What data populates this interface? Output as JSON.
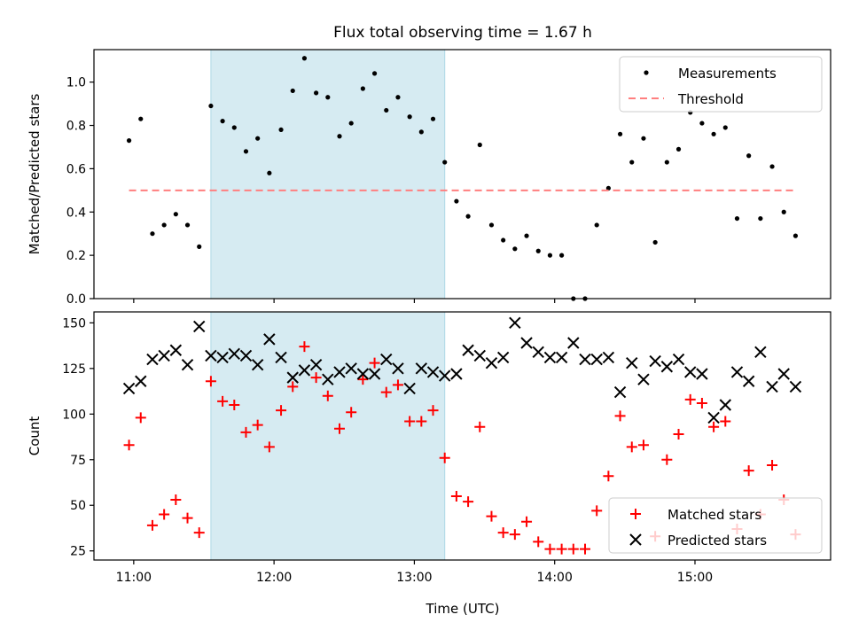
{
  "figure": {
    "title": "Flux total observing time = 1.67 h",
    "xlabel": "Time (UTC)"
  },
  "colors": {
    "measure": "#000000",
    "threshold": "#ff7f7f",
    "matched": "#ff0000",
    "predicted": "#000000",
    "shade": "#add8e6"
  },
  "chart_data": [
    {
      "type": "scatter",
      "ylabel": "Matched/Predicted stars",
      "xlim": [
        "10:43",
        "15:58"
      ],
      "ylim": [
        0,
        1.15
      ],
      "yticks": [
        0.0,
        0.2,
        0.4,
        0.6,
        0.8,
        1.0
      ],
      "xticks": [
        "11:00",
        "12:00",
        "13:00",
        "14:00",
        "15:00"
      ],
      "shaded_span": [
        "11:33",
        "13:13"
      ],
      "legend_position": "upper right",
      "series": [
        {
          "name": "Measurements",
          "marker": "dot",
          "x": [
            "10:58",
            "11:03",
            "11:08",
            "11:13",
            "11:18",
            "11:23",
            "11:28",
            "11:33",
            "11:38",
            "11:43",
            "11:48",
            "11:53",
            "11:58",
            "12:03",
            "12:08",
            "12:13",
            "12:18",
            "12:23",
            "12:28",
            "12:33",
            "12:38",
            "12:43",
            "12:48",
            "12:53",
            "12:58",
            "13:03",
            "13:08",
            "13:13",
            "13:18",
            "13:23",
            "13:28",
            "13:33",
            "13:38",
            "13:43",
            "13:48",
            "13:53",
            "13:58",
            "14:03",
            "14:08",
            "14:13",
            "14:18",
            "14:23",
            "14:28",
            "14:33",
            "14:38",
            "14:43",
            "14:48",
            "14:53",
            "14:58",
            "15:03",
            "15:08",
            "15:13",
            "15:18",
            "15:23",
            "15:28",
            "15:33",
            "15:38",
            "15:43"
          ],
          "y": [
            0.73,
            0.83,
            0.3,
            0.34,
            0.39,
            0.34,
            0.24,
            0.89,
            0.82,
            0.79,
            0.68,
            0.74,
            0.58,
            0.78,
            0.96,
            1.11,
            0.95,
            0.93,
            0.75,
            0.81,
            0.97,
            1.04,
            0.87,
            0.93,
            0.84,
            0.77,
            0.83,
            0.63,
            0.45,
            0.38,
            0.71,
            0.34,
            0.27,
            0.23,
            0.29,
            0.22,
            0.2,
            0.2,
            0.0,
            0.0,
            0.34,
            0.51,
            0.76,
            0.63,
            0.74,
            0.26,
            0.63,
            0.69,
            0.86,
            0.81,
            0.76,
            0.79,
            0.37,
            0.66,
            0.37,
            0.61,
            0.4,
            0.29
          ]
        },
        {
          "name": "Threshold",
          "style": "dashed",
          "x": [
            "10:58",
            "15:43"
          ],
          "y": [
            0.5,
            0.5
          ]
        }
      ]
    },
    {
      "type": "scatter",
      "ylabel": "Count",
      "xlim": [
        "10:43",
        "15:58"
      ],
      "ylim": [
        20,
        156
      ],
      "yticks": [
        25,
        50,
        75,
        100,
        125,
        150
      ],
      "xticks": [
        "11:00",
        "12:00",
        "13:00",
        "14:00",
        "15:00"
      ],
      "shaded_span": [
        "11:33",
        "13:13"
      ],
      "legend_position": "lower right",
      "series": [
        {
          "name": "Matched stars",
          "marker": "plus",
          "x": [
            "10:58",
            "11:03",
            "11:08",
            "11:13",
            "11:18",
            "11:23",
            "11:28",
            "11:33",
            "11:38",
            "11:43",
            "11:48",
            "11:53",
            "11:58",
            "12:03",
            "12:08",
            "12:13",
            "12:18",
            "12:23",
            "12:28",
            "12:33",
            "12:38",
            "12:43",
            "12:48",
            "12:53",
            "12:58",
            "13:03",
            "13:08",
            "13:13",
            "13:18",
            "13:23",
            "13:28",
            "13:33",
            "13:38",
            "13:43",
            "13:48",
            "13:53",
            "13:58",
            "14:03",
            "14:08",
            "14:13",
            "14:18",
            "14:23",
            "14:28",
            "14:33",
            "14:38",
            "14:43",
            "14:48",
            "14:53",
            "14:58",
            "15:03",
            "15:08",
            "15:13",
            "15:18",
            "15:23",
            "15:28",
            "15:33",
            "15:38",
            "15:43"
          ],
          "y": [
            83,
            98,
            39,
            45,
            53,
            43,
            35,
            118,
            107,
            105,
            90,
            94,
            82,
            102,
            115,
            137,
            120,
            110,
            92,
            101,
            119,
            128,
            112,
            116,
            96,
            96,
            102,
            76,
            55,
            52,
            93,
            44,
            35,
            34,
            41,
            30,
            26,
            26,
            26,
            26,
            47,
            66,
            99,
            82,
            83,
            33,
            75,
            89,
            108,
            106,
            93,
            96,
            37,
            69,
            45,
            72,
            53,
            34
          ]
        },
        {
          "name": "Predicted stars",
          "marker": "x",
          "x": [
            "10:58",
            "11:03",
            "11:08",
            "11:13",
            "11:18",
            "11:23",
            "11:28",
            "11:33",
            "11:38",
            "11:43",
            "11:48",
            "11:53",
            "11:58",
            "12:03",
            "12:08",
            "12:13",
            "12:18",
            "12:23",
            "12:28",
            "12:33",
            "12:38",
            "12:43",
            "12:48",
            "12:53",
            "12:58",
            "13:03",
            "13:08",
            "13:13",
            "13:18",
            "13:23",
            "13:28",
            "13:33",
            "13:38",
            "13:43",
            "13:48",
            "13:53",
            "13:58",
            "14:03",
            "14:08",
            "14:13",
            "14:18",
            "14:23",
            "14:28",
            "14:33",
            "14:38",
            "14:43",
            "14:48",
            "14:53",
            "14:58",
            "15:03",
            "15:08",
            "15:13",
            "15:18",
            "15:23",
            "15:28",
            "15:33",
            "15:38",
            "15:43"
          ],
          "y": [
            114,
            118,
            130,
            132,
            135,
            127,
            148,
            132,
            131,
            133,
            132,
            127,
            141,
            131,
            120,
            124,
            127,
            119,
            123,
            125,
            122,
            122,
            130,
            125,
            114,
            125,
            123,
            121,
            122,
            135,
            132,
            128,
            131,
            150,
            139,
            134,
            131,
            131,
            139,
            130,
            130,
            131,
            112,
            128,
            119,
            129,
            126,
            130,
            123,
            122,
            98,
            105,
            123,
            118,
            134,
            115,
            122,
            115
          ]
        }
      ]
    }
  ]
}
